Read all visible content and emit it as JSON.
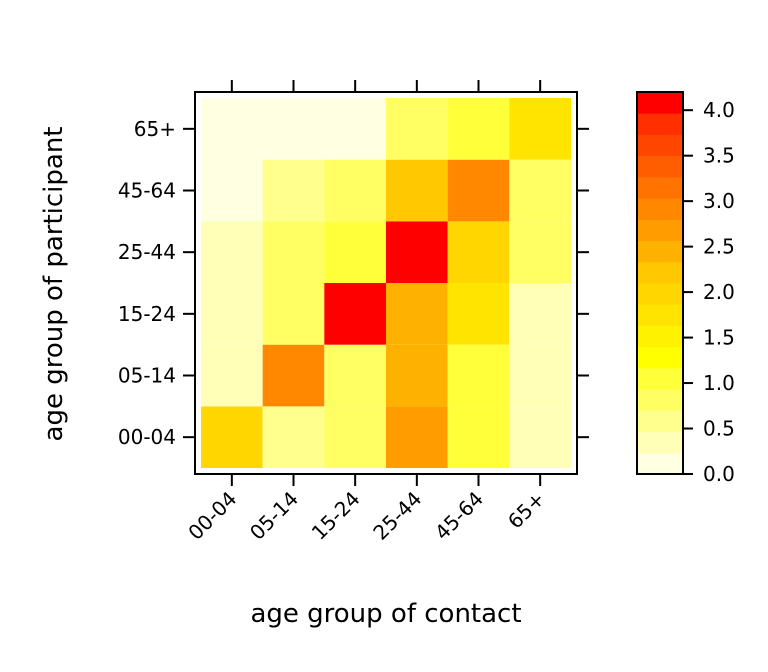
{
  "chart_data": {
    "type": "heatmap",
    "xlabel": "age group of contact",
    "ylabel": "age group of participant",
    "x_categories": [
      "00-04",
      "05-14",
      "15-24",
      "25-44",
      "45-64",
      "65+"
    ],
    "y_categories": [
      "00-04",
      "05-14",
      "15-24",
      "25-44",
      "45-64",
      "65+"
    ],
    "values": [
      [
        2.0,
        0.6,
        0.9,
        2.7,
        1.0,
        0.4
      ],
      [
        0.4,
        3.0,
        0.9,
        2.4,
        1.0,
        0.4
      ],
      [
        0.4,
        0.8,
        4.2,
        2.4,
        1.8,
        0.3
      ],
      [
        0.4,
        0.8,
        1.0,
        4.2,
        2.0,
        0.7
      ],
      [
        0.1,
        0.5,
        0.7,
        2.2,
        2.9,
        0.7
      ],
      [
        0.1,
        0.1,
        0.1,
        0.9,
        1.0,
        1.7
      ]
    ],
    "colorbar": {
      "ticks": [
        0.0,
        0.5,
        1.0,
        1.5,
        2.0,
        2.5,
        3.0,
        3.5,
        4.0
      ],
      "tick_labels": [
        "0.0",
        "0.5",
        "1.0",
        "1.5",
        "2.0",
        "2.5",
        "3.0",
        "3.5",
        "4.0"
      ],
      "range": [
        0.0,
        4.2
      ],
      "levels": 18,
      "colors": [
        "#FFFFE1",
        "#FFFFB8",
        "#FFFF8E",
        "#FFFF64",
        "#FFFF3A",
        "#FFFF00",
        "#FFF200",
        "#FFE400",
        "#FFD600",
        "#FFC800",
        "#FFB100",
        "#FF9C00",
        "#FF8800",
        "#FF7300",
        "#FF5E00",
        "#FF4600",
        "#FF2F00",
        "#FF0000"
      ]
    }
  }
}
